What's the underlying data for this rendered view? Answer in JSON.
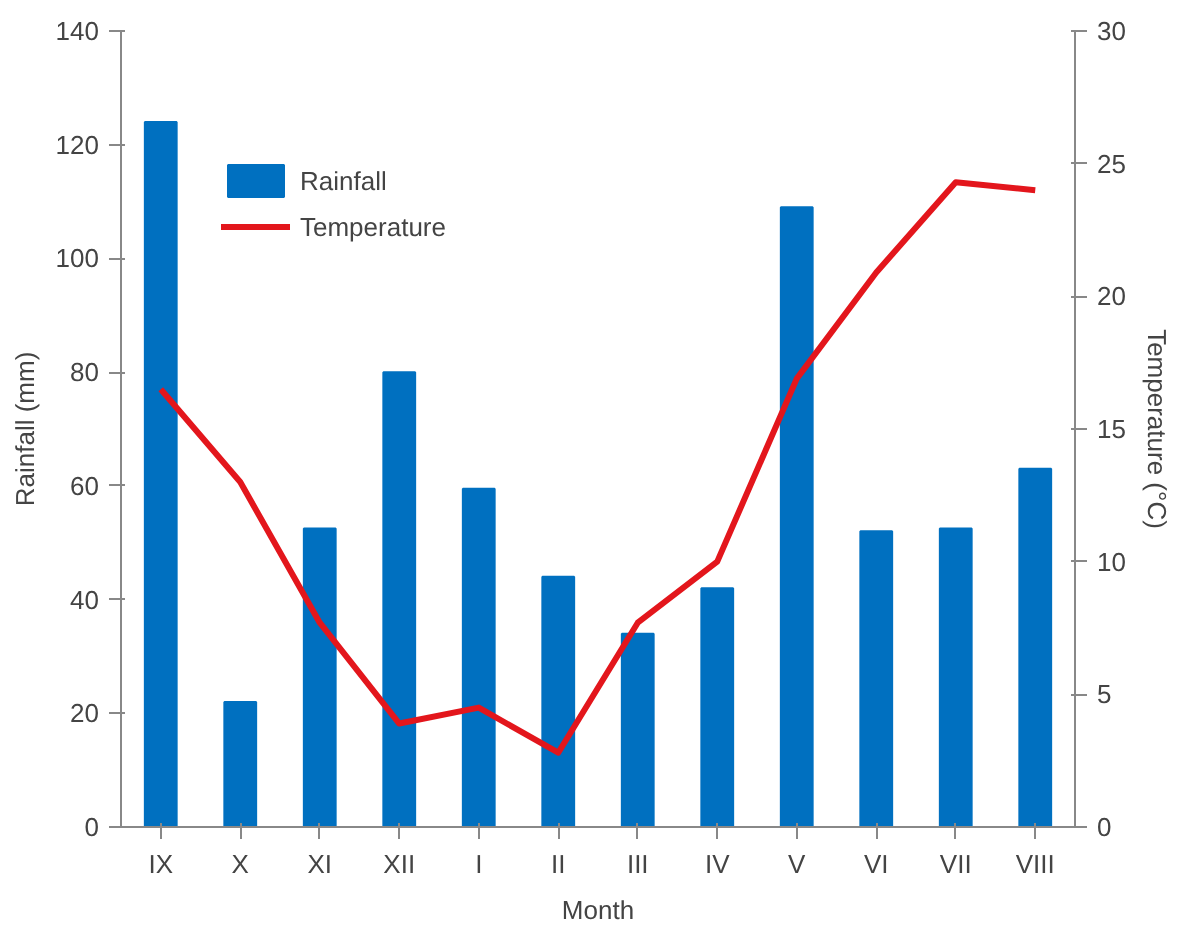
{
  "chart_data": {
    "type": "bar",
    "xlabel": "Month",
    "ylabel": "Rainfall (mm)",
    "y2label": "Temperature (°C)",
    "categories": [
      "IX",
      "X",
      "XI",
      "XII",
      "I",
      "II",
      "III",
      "IV",
      "V",
      "VI",
      "VII",
      "VIII"
    ],
    "series": [
      {
        "name": "Rainfall",
        "color": "#0070c0",
        "values": [
          124,
          22,
          52.5,
          80,
          59.5,
          44,
          34,
          42,
          109,
          52,
          52.5,
          63
        ]
      },
      {
        "name": "Temperature",
        "type": "line",
        "axis": "y2",
        "color": "#e3161c",
        "values": [
          16.5,
          13,
          7.7,
          3.9,
          4.5,
          2.8,
          7.7,
          10,
          16.9,
          20.9,
          24.3,
          24.0
        ]
      }
    ],
    "ylim": [
      0,
      140
    ],
    "yticks": [
      0,
      20,
      40,
      60,
      80,
      100,
      120,
      140
    ],
    "y2lim": [
      0,
      30
    ],
    "y2ticks": [
      0,
      5,
      10,
      15,
      20,
      25,
      30
    ],
    "grid": false,
    "legend": "top left",
    "marker": "none",
    "line_style": "solid"
  }
}
